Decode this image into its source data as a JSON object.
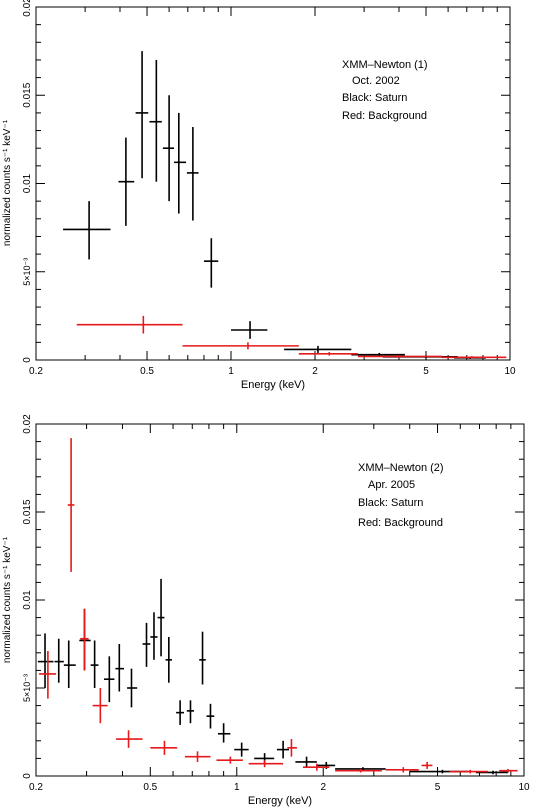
{
  "chart_data": [
    {
      "type": "scatter",
      "xscale": "log",
      "yscale": "linear",
      "xlim": [
        0.2,
        10
      ],
      "ylim": [
        0,
        0.02
      ],
      "xlabel": "Energy (keV)",
      "ylabel": "normalized counts s⁻¹ keV⁻¹",
      "x_ticks": [
        {
          "value": 0.2,
          "label": "0.2"
        },
        {
          "value": 0.5,
          "label": "0.5"
        },
        {
          "value": 1,
          "label": "1"
        },
        {
          "value": 2,
          "label": "2"
        },
        {
          "value": 5,
          "label": "5"
        },
        {
          "value": 10,
          "label": "10"
        }
      ],
      "y_ticks": [
        {
          "value": 0,
          "label": "0"
        },
        {
          "value": 0.005,
          "label": "5×10⁻³"
        },
        {
          "value": 0.01,
          "label": "0.01"
        },
        {
          "value": 0.015,
          "label": "0.015"
        },
        {
          "value": 0.02,
          "label": "0.02"
        }
      ],
      "annotations": [
        "XMM–Newton (1)",
        "Oct. 2002",
        "Black: Saturn",
        "Red: Background"
      ],
      "series": [
        {
          "color": "#000000",
          "points": [
            {
              "x": 0.31,
              "xlo": 0.25,
              "xhi": 0.37,
              "y": 0.0074,
              "ylo": 0.0057,
              "yhi": 0.009
            },
            {
              "x": 0.42,
              "xlo": 0.395,
              "xhi": 0.45,
              "y": 0.0101,
              "ylo": 0.0076,
              "yhi": 0.0126
            },
            {
              "x": 0.48,
              "xlo": 0.455,
              "xhi": 0.505,
              "y": 0.014,
              "ylo": 0.0103,
              "yhi": 0.0175
            },
            {
              "x": 0.54,
              "xlo": 0.51,
              "xhi": 0.565,
              "y": 0.0135,
              "ylo": 0.0101,
              "yhi": 0.017
            },
            {
              "x": 0.6,
              "xlo": 0.57,
              "xhi": 0.625,
              "y": 0.012,
              "ylo": 0.009,
              "yhi": 0.015
            },
            {
              "x": 0.65,
              "xlo": 0.625,
              "xhi": 0.69,
              "y": 0.0112,
              "ylo": 0.0083,
              "yhi": 0.014
            },
            {
              "x": 0.73,
              "xlo": 0.695,
              "xhi": 0.765,
              "y": 0.0106,
              "ylo": 0.0079,
              "yhi": 0.0132
            },
            {
              "x": 0.85,
              "xlo": 0.8,
              "xhi": 0.9,
              "y": 0.0056,
              "ylo": 0.0041,
              "yhi": 0.0069
            },
            {
              "x": 1.17,
              "xlo": 1.0,
              "xhi": 1.35,
              "y": 0.0017,
              "ylo": 0.0012,
              "yhi": 0.0022
            },
            {
              "x": 2.05,
              "xlo": 1.55,
              "xhi": 2.7,
              "y": 0.0006,
              "ylo": 0.0004,
              "yhi": 0.0008
            },
            {
              "x": 3.4,
              "xlo": 2.7,
              "xhi": 4.2,
              "y": 0.0003,
              "ylo": 0.0002,
              "yhi": 0.0004
            },
            {
              "x": 5.0,
              "xlo": 3.5,
              "xhi": 6.5,
              "y": 0.00018,
              "ylo": 0.0001,
              "yhi": 0.00026
            },
            {
              "x": 7.2,
              "xlo": 6.3,
              "xhi": 8.2,
              "y": 0.00012,
              "ylo": 6e-05,
              "yhi": 0.00018
            }
          ]
        },
        {
          "color": "#e41a1c",
          "points": [
            {
              "x": 0.485,
              "xlo": 0.28,
              "xhi": 0.67,
              "y": 0.002,
              "ylo": 0.0015,
              "yhi": 0.0025
            },
            {
              "x": 1.15,
              "xlo": 0.67,
              "xhi": 1.75,
              "y": 0.0008,
              "ylo": 0.0006,
              "yhi": 0.001
            },
            {
              "x": 2.25,
              "xlo": 1.75,
              "xhi": 2.85,
              "y": 0.00035,
              "ylo": 0.00025,
              "yhi": 0.00045
            },
            {
              "x": 4.0,
              "xlo": 2.85,
              "xhi": 5.7,
              "y": 0.0002,
              "ylo": 0.00012,
              "yhi": 0.00028
            },
            {
              "x": 7.3,
              "xlo": 5.7,
              "xhi": 9.7,
              "y": 0.00015,
              "ylo": 8e-05,
              "yhi": 0.00022
            }
          ]
        }
      ]
    },
    {
      "type": "scatter",
      "xscale": "log",
      "yscale": "linear",
      "xlim": [
        0.2,
        10
      ],
      "ylim": [
        0,
        0.02
      ],
      "xlabel": "Energy (keV)",
      "ylabel": "normalized counts s⁻¹ keV⁻¹",
      "x_ticks": [
        {
          "value": 0.2,
          "label": "0.2"
        },
        {
          "value": 0.5,
          "label": "0.5"
        },
        {
          "value": 1,
          "label": "1"
        },
        {
          "value": 2,
          "label": "2"
        },
        {
          "value": 5,
          "label": "5"
        },
        {
          "value": 10,
          "label": "10"
        }
      ],
      "y_ticks": [
        {
          "value": 0,
          "label": "0"
        },
        {
          "value": 0.005,
          "label": "5×10⁻³"
        },
        {
          "value": 0.01,
          "label": "0.01"
        },
        {
          "value": 0.015,
          "label": "0.015"
        },
        {
          "value": 0.02,
          "label": "0.02"
        }
      ],
      "annotations": [
        "XMM–Newton (2)",
        "Apr. 2005",
        "Black: Saturn",
        "Red: Background"
      ],
      "series": [
        {
          "color": "#000000",
          "points": [
            {
              "x": 0.215,
              "xlo": 0.203,
              "xhi": 0.23,
              "y": 0.0065,
              "ylo": 0.005,
              "yhi": 0.0081
            },
            {
              "x": 0.24,
              "xlo": 0.232,
              "xhi": 0.25,
              "y": 0.0065,
              "ylo": 0.0053,
              "yhi": 0.0078
            },
            {
              "x": 0.26,
              "xlo": 0.25,
              "xhi": 0.275,
              "y": 0.0063,
              "ylo": 0.005,
              "yhi": 0.0077
            },
            {
              "x": 0.295,
              "xlo": 0.283,
              "xhi": 0.31,
              "y": 0.0077,
              "ylo": 0.006,
              "yhi": 0.0095
            },
            {
              "x": 0.32,
              "xlo": 0.31,
              "xhi": 0.33,
              "y": 0.0063,
              "ylo": 0.005,
              "yhi": 0.0077
            },
            {
              "x": 0.36,
              "xlo": 0.345,
              "xhi": 0.375,
              "y": 0.0055,
              "ylo": 0.0042,
              "yhi": 0.0068
            },
            {
              "x": 0.39,
              "xlo": 0.378,
              "xhi": 0.405,
              "y": 0.0061,
              "ylo": 0.0048,
              "yhi": 0.0075
            },
            {
              "x": 0.43,
              "xlo": 0.415,
              "xhi": 0.45,
              "y": 0.005,
              "ylo": 0.0039,
              "yhi": 0.0061
            },
            {
              "x": 0.485,
              "xlo": 0.47,
              "xhi": 0.5,
              "y": 0.0075,
              "ylo": 0.0062,
              "yhi": 0.0087
            },
            {
              "x": 0.515,
              "xlo": 0.5,
              "xhi": 0.53,
              "y": 0.0079,
              "ylo": 0.0066,
              "yhi": 0.0093
            },
            {
              "x": 0.545,
              "xlo": 0.53,
              "xhi": 0.56,
              "y": 0.009,
              "ylo": 0.0068,
              "yhi": 0.0112
            },
            {
              "x": 0.58,
              "xlo": 0.565,
              "xhi": 0.595,
              "y": 0.0066,
              "ylo": 0.0053,
              "yhi": 0.0079
            },
            {
              "x": 0.635,
              "xlo": 0.615,
              "xhi": 0.655,
              "y": 0.0036,
              "ylo": 0.0029,
              "yhi": 0.0043
            },
            {
              "x": 0.69,
              "xlo": 0.67,
              "xhi": 0.71,
              "y": 0.0037,
              "ylo": 0.003,
              "yhi": 0.0043
            },
            {
              "x": 0.76,
              "xlo": 0.74,
              "xhi": 0.78,
              "y": 0.0066,
              "ylo": 0.0052,
              "yhi": 0.0082
            },
            {
              "x": 0.81,
              "xlo": 0.785,
              "xhi": 0.835,
              "y": 0.0034,
              "ylo": 0.0027,
              "yhi": 0.0041
            },
            {
              "x": 0.9,
              "xlo": 0.86,
              "xhi": 0.95,
              "y": 0.0024,
              "ylo": 0.0019,
              "yhi": 0.003
            },
            {
              "x": 1.04,
              "xlo": 0.98,
              "xhi": 1.1,
              "y": 0.0015,
              "ylo": 0.0011,
              "yhi": 0.0019
            },
            {
              "x": 1.25,
              "xlo": 1.15,
              "xhi": 1.35,
              "y": 0.001,
              "ylo": 0.0007,
              "yhi": 0.0013
            },
            {
              "x": 1.45,
              "xlo": 1.38,
              "xhi": 1.52,
              "y": 0.0015,
              "ylo": 0.001,
              "yhi": 0.002
            },
            {
              "x": 1.75,
              "xlo": 1.6,
              "xhi": 1.9,
              "y": 0.0008,
              "ylo": 0.0005,
              "yhi": 0.0011
            },
            {
              "x": 2.05,
              "xlo": 1.9,
              "xhi": 2.2,
              "y": 0.0006,
              "ylo": 0.0004,
              "yhi": 0.0008
            },
            {
              "x": 2.75,
              "xlo": 2.2,
              "xhi": 3.3,
              "y": 0.0004,
              "ylo": 0.0003,
              "yhi": 0.0005
            },
            {
              "x": 5.2,
              "xlo": 4.0,
              "xhi": 6.4,
              "y": 0.00025,
              "ylo": 0.00015,
              "yhi": 0.00035
            },
            {
              "x": 7.8,
              "xlo": 6.8,
              "xhi": 8.8,
              "y": 0.0002,
              "ylo": 0.0001,
              "yhi": 0.0003
            }
          ]
        },
        {
          "color": "#e41a1c",
          "points": [
            {
              "x": 0.22,
              "xlo": 0.205,
              "xhi": 0.235,
              "y": 0.0058,
              "ylo": 0.0044,
              "yhi": 0.0071
            },
            {
              "x": 0.265,
              "xlo": 0.258,
              "xhi": 0.272,
              "y": 0.0154,
              "ylo": 0.0116,
              "yhi": 0.0192
            },
            {
              "x": 0.295,
              "xlo": 0.285,
              "xhi": 0.305,
              "y": 0.0078,
              "ylo": 0.006,
              "yhi": 0.0095
            },
            {
              "x": 0.335,
              "xlo": 0.315,
              "xhi": 0.355,
              "y": 0.004,
              "ylo": 0.003,
              "yhi": 0.005
            },
            {
              "x": 0.42,
              "xlo": 0.38,
              "xhi": 0.47,
              "y": 0.0021,
              "ylo": 0.0016,
              "yhi": 0.0026
            },
            {
              "x": 0.56,
              "xlo": 0.5,
              "xhi": 0.62,
              "y": 0.0016,
              "ylo": 0.0012,
              "yhi": 0.002
            },
            {
              "x": 0.73,
              "xlo": 0.66,
              "xhi": 0.81,
              "y": 0.0011,
              "ylo": 0.0008,
              "yhi": 0.0014
            },
            {
              "x": 0.95,
              "xlo": 0.85,
              "xhi": 1.05,
              "y": 0.0009,
              "ylo": 0.0007,
              "yhi": 0.0011
            },
            {
              "x": 1.25,
              "xlo": 1.1,
              "xhi": 1.45,
              "y": 0.0007,
              "ylo": 0.0005,
              "yhi": 0.0009
            },
            {
              "x": 1.55,
              "xlo": 1.5,
              "xhi": 1.62,
              "y": 0.0016,
              "ylo": 0.0011,
              "yhi": 0.0021
            },
            {
              "x": 1.9,
              "xlo": 1.7,
              "xhi": 2.1,
              "y": 0.0005,
              "ylo": 0.0003,
              "yhi": 0.0007
            },
            {
              "x": 2.7,
              "xlo": 2.2,
              "xhi": 3.2,
              "y": 0.0003,
              "ylo": 0.0002,
              "yhi": 0.0004
            },
            {
              "x": 3.8,
              "xlo": 3.3,
              "xhi": 4.3,
              "y": 0.00035,
              "ylo": 0.0002,
              "yhi": 0.0005
            },
            {
              "x": 4.6,
              "xlo": 4.4,
              "xhi": 4.8,
              "y": 0.0006,
              "ylo": 0.0004,
              "yhi": 0.0008
            },
            {
              "x": 6.5,
              "xlo": 5.5,
              "xhi": 7.5,
              "y": 0.00025,
              "ylo": 0.00015,
              "yhi": 0.00035
            },
            {
              "x": 8.8,
              "xlo": 8.2,
              "xhi": 9.5,
              "y": 0.0003,
              "ylo": 0.0002,
              "yhi": 0.0004
            }
          ]
        }
      ]
    }
  ]
}
